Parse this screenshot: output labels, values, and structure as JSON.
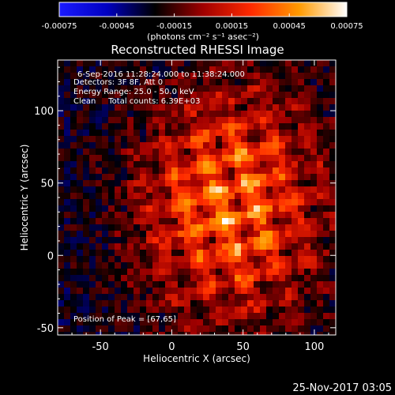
{
  "chart_data": {
    "type": "heatmap",
    "title": "Reconstructed RHESSI Image",
    "xlabel": "Heliocentric X (arcsec)",
    "ylabel": "Heliocentric Y (arcsec)",
    "xlim": [
      -80,
      115
    ],
    "ylim": [
      -55,
      135
    ],
    "x_ticks": [
      -50,
      0,
      50,
      100
    ],
    "y_ticks": [
      -50,
      0,
      50,
      100
    ],
    "x_tick_labels": [
      "-50",
      "0",
      "50",
      "100"
    ],
    "y_tick_labels": [
      "-50",
      "0",
      "50",
      "100"
    ],
    "colorbar": {
      "range": [
        -0.00075,
        0.00075
      ],
      "ticks": [
        -0.00075,
        -0.00045,
        -0.00015,
        0.00015,
        0.00045,
        0.00075
      ],
      "tick_labels": [
        "-0.00075",
        "-0.00045",
        "-0.00015",
        "0.00015",
        "0.00045",
        "0.00075"
      ],
      "units_label": "(photons cm⁻² s⁻¹ asec⁻²)",
      "colors": [
        "#1a1aff",
        "#0000c0",
        "#000000",
        "#a00000",
        "#ff2a00",
        "#ff9a00",
        "#ffffff"
      ]
    },
    "annotations": [
      "6-Sep-2016 11:28:24.000 to 11:38:24.000",
      "Detectors: 3F 8F, Att 0",
      "Energy Range: 25.0 - 50.0 keV",
      "Clean     Total counts: 6.39E+03"
    ],
    "peak_label": "Position of Peak = [67,65]",
    "peak": [
      67,
      65
    ],
    "grid": false
  },
  "timestamp": "25-Nov-2017 03:05"
}
